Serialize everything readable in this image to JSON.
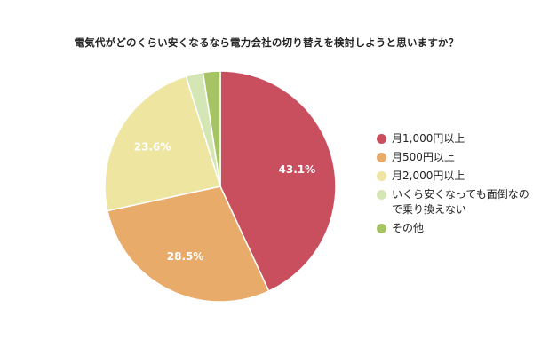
{
  "chart_data": {
    "type": "pie",
    "title": "電気代がどのくらい安くなるなら電力会社の切り替えを検討しようと思いますか？",
    "categories": [
      "月1,000円以上",
      "月500円以上",
      "月2,000円以上",
      "いくら安くなっても面倒なので乗り換えない",
      "その他"
    ],
    "values": [
      43.1,
      28.5,
      23.6,
      2.4,
      2.4
    ],
    "data_labels": [
      "43.1%",
      "28.5%",
      "23.6%",
      "",
      ""
    ],
    "colors": [
      "#c94e5e",
      "#e8ab6a",
      "#ede5a0",
      "#d5e6b5",
      "#a7c464"
    ],
    "legend_position": "right",
    "grid": false
  }
}
